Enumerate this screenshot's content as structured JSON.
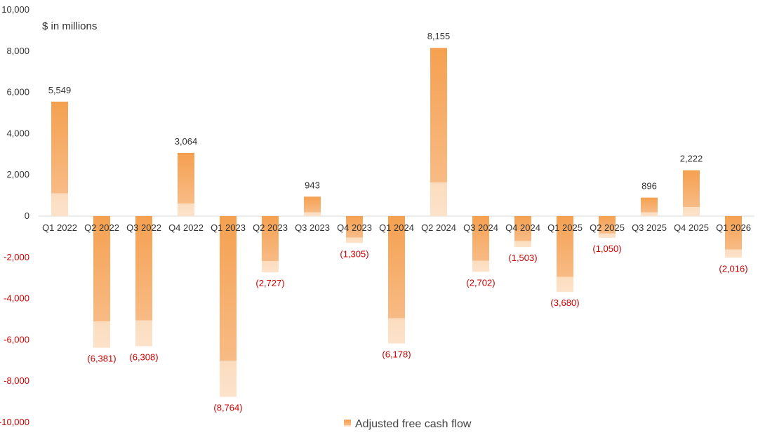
{
  "chart_data": {
    "type": "bar",
    "unit_label": "$ in millions",
    "categories": [
      "Q1 2022",
      "Q2 2022",
      "Q3 2022",
      "Q4 2022",
      "Q1 2023",
      "Q2 2023",
      "Q3 2023",
      "Q4 2023",
      "Q1 2024",
      "Q2 2024",
      "Q3 2024",
      "Q4 2024",
      "Q1 2025",
      "Q2 2025",
      "Q3 2025",
      "Q4 2025",
      "Q1 2026"
    ],
    "series": [
      {
        "name": "Adjusted free cash flow",
        "values": [
          5549,
          -6381,
          -6308,
          3064,
          -8764,
          -2727,
          943,
          -1305,
          -6178,
          8155,
          -2702,
          -1503,
          -3680,
          -1050,
          896,
          2222,
          -2016
        ],
        "data_labels": [
          "5,549",
          "(6,381)",
          "(6,308)",
          "3,064",
          "(8,764)",
          "(2,727)",
          "943",
          "(1,305)",
          "(6,178)",
          "8,155",
          "(2,702)",
          "(1,503)",
          "(3,680)",
          "(1,050)",
          "896",
          "2,222",
          "(2,016)"
        ]
      }
    ],
    "ylim": [
      -10000,
      10000
    ],
    "y_ticks": [
      10000,
      8000,
      6000,
      4000,
      2000,
      0,
      -2000,
      -4000,
      -6000,
      -8000,
      -10000
    ],
    "y_tick_labels": [
      "10,000",
      "8,000",
      "6,000",
      "4,000",
      "2,000",
      "0",
      "-2,000",
      "-4,000",
      "-6,000",
      "-8,000",
      "-10,000"
    ],
    "grid": false,
    "legend_position": "bottom",
    "colors": {
      "bar_top": "#f5a050",
      "bar_bottom": "#fcdcbe",
      "negative_text": "#cc0000",
      "positive_text": "#333333",
      "zero_line": "#d9d9d9"
    }
  }
}
